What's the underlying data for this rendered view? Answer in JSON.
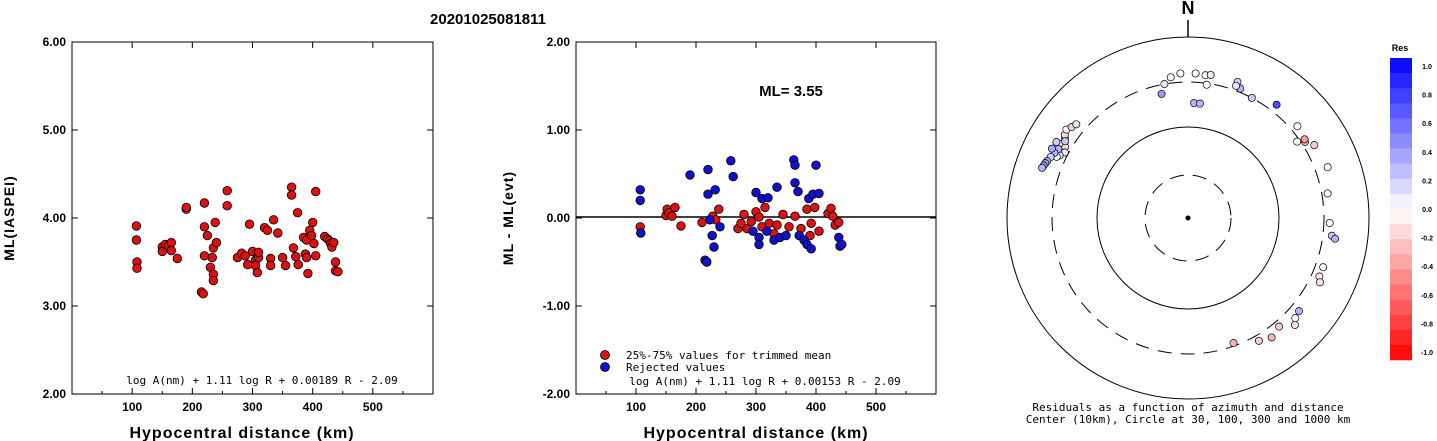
{
  "figure": {
    "title": "20201025081811"
  },
  "chart_data": [
    {
      "type": "scatter",
      "xlabel": "Hypocentral distance (km)",
      "ylabel": "ML(IASPEI)",
      "xlim": [
        0,
        600
      ],
      "ylim": [
        2.0,
        6.0
      ],
      "xticks": [
        "100",
        "200",
        "300",
        "400",
        "500"
      ],
      "yticks": [
        "2.00",
        "3.00",
        "4.00",
        "5.00",
        "6.00"
      ],
      "formula": "log A(nm) + 1.11 log R + 0.00189 R - 2.09",
      "marker_color": "#dd1111",
      "points": [
        [
          107,
          3.91
        ],
        [
          107,
          3.75
        ],
        [
          108,
          3.5
        ],
        [
          108,
          3.43
        ],
        [
          150,
          3.67
        ],
        [
          150,
          3.62
        ],
        [
          155,
          3.7
        ],
        [
          160,
          3.68
        ],
        [
          165,
          3.72
        ],
        [
          165,
          3.63
        ],
        [
          175,
          3.54
        ],
        [
          190,
          4.1
        ],
        [
          190,
          4.12
        ],
        [
          215,
          3.16
        ],
        [
          218,
          3.14
        ],
        [
          220,
          4.17
        ],
        [
          220,
          3.9
        ],
        [
          220,
          3.57
        ],
        [
          225,
          3.8
        ],
        [
          230,
          3.44
        ],
        [
          233,
          3.55
        ],
        [
          235,
          3.66
        ],
        [
          235,
          3.36
        ],
        [
          235,
          3.29
        ],
        [
          238,
          3.95
        ],
        [
          240,
          3.72
        ],
        [
          258,
          4.31
        ],
        [
          258,
          4.14
        ],
        [
          275,
          3.55
        ],
        [
          282,
          3.6
        ],
        [
          288,
          3.57
        ],
        [
          292,
          3.47
        ],
        [
          295,
          3.93
        ],
        [
          300,
          3.62
        ],
        [
          305,
          3.52
        ],
        [
          305,
          3.46
        ],
        [
          308,
          3.38
        ],
        [
          310,
          3.55
        ],
        [
          310,
          3.61
        ],
        [
          320,
          3.89
        ],
        [
          325,
          3.86
        ],
        [
          330,
          3.54
        ],
        [
          330,
          3.46
        ],
        [
          335,
          3.98
        ],
        [
          342,
          3.83
        ],
        [
          350,
          3.55
        ],
        [
          355,
          3.46
        ],
        [
          365,
          4.35
        ],
        [
          365,
          4.26
        ],
        [
          368,
          3.66
        ],
        [
          372,
          3.56
        ],
        [
          375,
          4.06
        ],
        [
          376,
          3.47
        ],
        [
          385,
          3.78
        ],
        [
          388,
          3.59
        ],
        [
          390,
          3.75
        ],
        [
          390,
          3.55
        ],
        [
          392,
          3.37
        ],
        [
          395,
          3.86
        ],
        [
          398,
          3.8
        ],
        [
          400,
          3.95
        ],
        [
          402,
          3.71
        ],
        [
          405,
          4.3
        ],
        [
          405,
          3.57
        ],
        [
          420,
          3.79
        ],
        [
          425,
          3.76
        ],
        [
          428,
          3.74
        ],
        [
          430,
          3.71
        ],
        [
          432,
          3.67
        ],
        [
          435,
          3.72
        ],
        [
          438,
          3.5
        ],
        [
          438,
          3.4
        ],
        [
          442,
          3.39
        ]
      ]
    },
    {
      "type": "scatter",
      "xlabel": "Hypocentral distance (km)",
      "ylabel": "ML - ML(evt)",
      "xlim": [
        0,
        600
      ],
      "ylim": [
        -2.0,
        2.0
      ],
      "xticks": [
        "100",
        "200",
        "300",
        "400",
        "500"
      ],
      "yticks": [
        "-2.00",
        "-1.00",
        "0.00",
        "1.00",
        "2.00"
      ],
      "annotation": "ML= 3.55",
      "reference_line": 0,
      "formula": "log A(nm) + 1.11 log R + 0.00153 R - 2.09",
      "legend": [
        "25%-75% values for trimmed mean",
        "Rejected values"
      ],
      "series": [
        {
          "name": "25%-75% values for trimmed mean",
          "color": "#dd1111",
          "points": [
            [
              107,
              -0.1
            ],
            [
              150,
              0.03
            ],
            [
              152,
              0.1
            ],
            [
              155,
              0.06
            ],
            [
              160,
              0.02
            ],
            [
              165,
              0.12
            ],
            [
              175,
              -0.09
            ],
            [
              210,
              -0.05
            ],
            [
              228,
              0.02
            ],
            [
              233,
              -0.02
            ],
            [
              238,
              0.1
            ],
            [
              270,
              -0.12
            ],
            [
              275,
              -0.06
            ],
            [
              280,
              0.04
            ],
            [
              285,
              -0.12
            ],
            [
              292,
              -0.04
            ],
            [
              300,
              0.07
            ],
            [
              305,
              0.01
            ],
            [
              310,
              -0.1
            ],
            [
              315,
              0.12
            ],
            [
              322,
              -0.06
            ],
            [
              330,
              -0.18
            ],
            [
              335,
              -0.08
            ],
            [
              345,
              0.04
            ],
            [
              355,
              -0.1
            ],
            [
              365,
              0.02
            ],
            [
              375,
              -0.12
            ],
            [
              385,
              0.1
            ],
            [
              390,
              -0.2
            ],
            [
              392,
              -0.06
            ],
            [
              398,
              0.12
            ],
            [
              405,
              -0.15
            ],
            [
              420,
              0.05
            ],
            [
              425,
              0.11
            ],
            [
              428,
              0.02
            ],
            [
              432,
              -0.08
            ],
            [
              438,
              -0.05
            ]
          ]
        },
        {
          "name": "Rejected values",
          "color": "#1111cc",
          "points": [
            [
              107,
              0.32
            ],
            [
              107,
              0.2
            ],
            [
              108,
              -0.17
            ],
            [
              190,
              0.49
            ],
            [
              215,
              -0.48
            ],
            [
              218,
              -0.5
            ],
            [
              220,
              0.55
            ],
            [
              220,
              0.27
            ],
            [
              223,
              -0.02
            ],
            [
              227,
              -0.2
            ],
            [
              230,
              -0.33
            ],
            [
              232,
              0.32
            ],
            [
              240,
              -0.1
            ],
            [
              258,
              0.65
            ],
            [
              262,
              0.47
            ],
            [
              295,
              -0.15
            ],
            [
              300,
              0.29
            ],
            [
              305,
              -0.22
            ],
            [
              305,
              -0.3
            ],
            [
              310,
              0.22
            ],
            [
              318,
              -0.15
            ],
            [
              320,
              0.23
            ],
            [
              330,
              -0.25
            ],
            [
              335,
              0.35
            ],
            [
              340,
              -0.22
            ],
            [
              350,
              -0.2
            ],
            [
              363,
              0.66
            ],
            [
              365,
              0.6
            ],
            [
              365,
              0.4
            ],
            [
              370,
              0.3
            ],
            [
              372,
              -0.2
            ],
            [
              380,
              -0.25
            ],
            [
              385,
              -0.3
            ],
            [
              388,
              0.22
            ],
            [
              392,
              -0.35
            ],
            [
              395,
              0.27
            ],
            [
              400,
              0.6
            ],
            [
              405,
              0.28
            ],
            [
              438,
              -0.22
            ],
            [
              440,
              -0.32
            ],
            [
              443,
              -0.3
            ]
          ]
        }
      ]
    },
    {
      "type": "scatter",
      "title": "N",
      "caption_line1": "Residuals as a function of azimuth and distance",
      "caption_line2": "Center (10km), Circle at 30, 100, 300 and 1000 km",
      "radial_scale": "log",
      "rings_km": [
        30,
        100,
        300,
        1000
      ],
      "ring_styles": [
        "dashed",
        "solid",
        "dashed",
        "solid"
      ],
      "points_az_deg_dist_km_res": [
        [
          300,
          350,
          -0.15
        ],
        [
          298,
          330,
          0.1
        ],
        [
          296,
          360,
          0.1
        ],
        [
          303,
          400,
          -0.1
        ],
        [
          304,
          420,
          -0.15
        ],
        [
          306,
          440,
          0.0
        ],
        [
          308,
          410,
          -0.2
        ],
        [
          300,
          420,
          -0.1
        ],
        [
          295,
          380,
          0.0
        ],
        [
          310,
          390,
          0.1
        ],
        [
          302,
          380,
          0.22
        ],
        [
          298,
          400,
          0.3
        ],
        [
          296,
          420,
          0.3
        ],
        [
          294,
          440,
          0.2
        ],
        [
          292,
          460,
          0.3
        ],
        [
          291,
          470,
          0.35
        ],
        [
          290,
          480,
          0.4
        ],
        [
          289,
          490,
          0.3
        ],
        [
          300,
          460,
          0.2
        ],
        [
          297,
          470,
          0.35
        ],
        [
          3,
          380,
          0.0
        ],
        [
          357,
          380,
          0.0
        ],
        [
          7,
          370,
          0.0
        ],
        [
          9,
          380,
          -0.1
        ],
        [
          353,
          350,
          0.0
        ],
        [
          8,
          290,
          0.0
        ],
        [
          350,
          300,
          0.1
        ],
        [
          348,
          240,
          0.4
        ],
        [
          3,
          180,
          0.3
        ],
        [
          6,
          180,
          0.3
        ],
        [
          20,
          380,
          0.2
        ],
        [
          22,
          330,
          0.3
        ],
        [
          20,
          340,
          0.1
        ],
        [
          28,
          300,
          0.2
        ],
        [
          38,
          370,
          0.7
        ],
        [
          50,
          360,
          0.0
        ],
        [
          55,
          280,
          0.0
        ],
        [
          57,
          330,
          -0.3
        ],
        [
          56,
          340,
          -0.4
        ],
        [
          60,
          390,
          -0.2
        ],
        [
          70,
          420,
          0.0
        ],
        [
          80,
          350,
          0.0
        ],
        [
          92,
          350,
          0.0
        ],
        [
          97,
          380,
          0.2
        ],
        [
          98,
          420,
          0.3
        ],
        [
          110,
          370,
          0.0
        ],
        [
          114,
          370,
          -0.1
        ],
        [
          116,
          400,
          -0.1
        ],
        [
          130,
          380,
          0.3
        ],
        [
          133,
          400,
          0.0
        ],
        [
          135,
          450,
          -0.1
        ],
        [
          140,
          350,
          -0.2
        ],
        [
          150,
          350,
          -0.2
        ],
        [
          145,
          390,
          -0.3
        ],
        [
          160,
          280,
          -0.3
        ]
      ],
      "colorbar": {
        "title": "Res",
        "labels": [
          "1.0",
          "0.8",
          "0.6",
          "0.4",
          "0.2",
          "0.0",
          "-0.2",
          "-0.4",
          "-0.6",
          "-0.8",
          "-1.0"
        ],
        "positive_color": "#0000ff",
        "negative_color": "#ff0000"
      }
    }
  ]
}
